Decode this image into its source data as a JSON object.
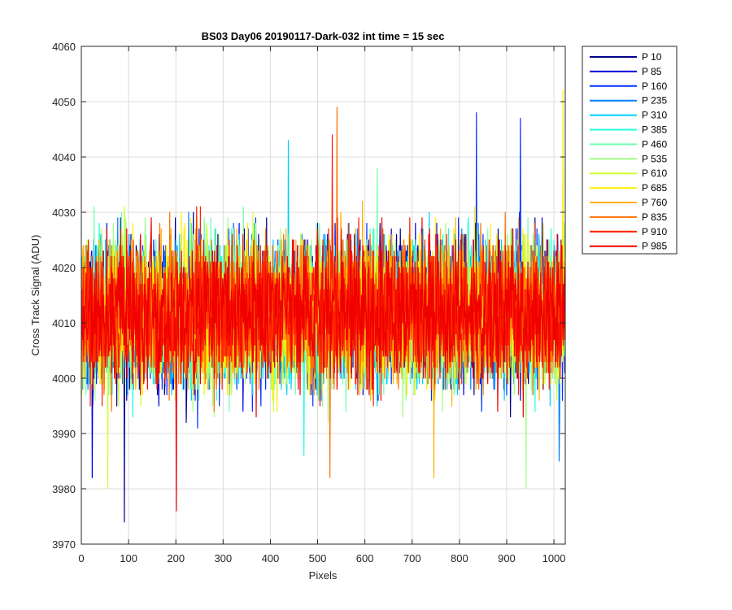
{
  "chart_data": {
    "type": "line",
    "title": "BS03 Day06 20190117-Dark-032 int time = 15 sec",
    "xlabel": "Pixels",
    "ylabel": "Cross Track Signal (ADU)",
    "xlim": [
      0,
      1024
    ],
    "ylim": [
      3970,
      4060
    ],
    "xticks": [
      "0",
      "100",
      "200",
      "300",
      "400",
      "500",
      "600",
      "700",
      "800",
      "900",
      "1000"
    ],
    "yticks": [
      "3970",
      "3980",
      "3990",
      "4000",
      "4010",
      "4020",
      "4030",
      "4040",
      "4050",
      "4060"
    ],
    "grid": true,
    "legend_position": "outside-top-right",
    "noise": {
      "mean": 4012,
      "typical_range": [
        3988,
        4036
      ],
      "points_per_series": 1024
    },
    "series": [
      {
        "name": "P 10",
        "color": "#00008F",
        "extremes": [
          [
            90,
            3974
          ]
        ]
      },
      {
        "name": "P 85",
        "color": "#0000DF",
        "extremes": [
          [
            22,
            3982
          ]
        ]
      },
      {
        "name": "P 160",
        "color": "#0030FF",
        "extremes": [
          [
            835,
            4048
          ],
          [
            928,
            4047
          ]
        ]
      },
      {
        "name": "P 235",
        "color": "#0080FF",
        "extremes": [
          [
            1010,
            3985
          ]
        ]
      },
      {
        "name": "P 310",
        "color": "#00CFFF",
        "extremes": [
          [
            437,
            4043
          ]
        ]
      },
      {
        "name": "P 385",
        "color": "#20FFDF",
        "extremes": [
          [
            470,
            3986
          ]
        ]
      },
      {
        "name": "P 460",
        "color": "#70FFAF",
        "extremes": [
          [
            625,
            4038
          ]
        ]
      },
      {
        "name": "P 535",
        "color": "#9FFF80",
        "extremes": [
          [
            940,
            3980
          ]
        ]
      },
      {
        "name": "P 610",
        "color": "#CFFF30",
        "extremes": [
          [
            55,
            3980
          ]
        ]
      },
      {
        "name": "P 685",
        "color": "#FFEF00",
        "extremes": [
          [
            1018,
            4052
          ]
        ]
      },
      {
        "name": "P 760",
        "color": "#FFB000",
        "extremes": [
          [
            745,
            3982
          ]
        ]
      },
      {
        "name": "P 835",
        "color": "#FF7000",
        "extremes": [
          [
            540,
            4049
          ],
          [
            525,
            3982
          ]
        ]
      },
      {
        "name": "P 910",
        "color": "#FF2000",
        "extremes": [
          [
            530,
            4044
          ]
        ]
      },
      {
        "name": "P 985",
        "color": "#F00000",
        "extremes": [
          [
            200,
            3976
          ]
        ]
      }
    ]
  }
}
